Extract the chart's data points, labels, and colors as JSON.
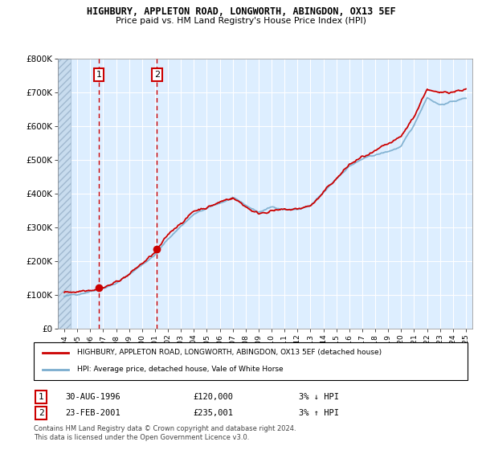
{
  "title": "HIGHBURY, APPLETON ROAD, LONGWORTH, ABINGDON, OX13 5EF",
  "subtitle": "Price paid vs. HM Land Registry's House Price Index (HPI)",
  "legend_label_red": "HIGHBURY, APPLETON ROAD, LONGWORTH, ABINGDON, OX13 5EF (detached house)",
  "legend_label_blue": "HPI: Average price, detached house, Vale of White Horse",
  "annotation1_label": "1",
  "annotation1_date": "30-AUG-1996",
  "annotation1_price": "£120,000",
  "annotation1_hpi": "3% ↓ HPI",
  "annotation2_label": "2",
  "annotation2_date": "23-FEB-2001",
  "annotation2_price": "£235,001",
  "annotation2_hpi": "3% ↑ HPI",
  "footer": "Contains HM Land Registry data © Crown copyright and database right 2024.\nThis data is licensed under the Open Government Licence v3.0.",
  "sale1_x": 1996.66,
  "sale1_y": 120000,
  "sale2_x": 2001.15,
  "sale2_y": 235001,
  "vline1_x": 1996.66,
  "vline2_x": 2001.15,
  "ylim": [
    0,
    800000
  ],
  "xlim_start": 1993.5,
  "xlim_end": 2025.5,
  "hatch_end": 1994.5,
  "color_red": "#cc0000",
  "color_blue": "#7aadce",
  "color_vline": "#cc0000",
  "background_plot": "#ddeeff",
  "background_fig": "#ffffff",
  "grid_color": "#ffffff",
  "xtick_years": [
    1994,
    1995,
    1996,
    1997,
    1998,
    1999,
    2000,
    2001,
    2002,
    2003,
    2004,
    2005,
    2006,
    2007,
    2008,
    2009,
    2010,
    2011,
    2012,
    2013,
    2014,
    2015,
    2016,
    2017,
    2018,
    2019,
    2020,
    2021,
    2022,
    2023,
    2024,
    2025
  ]
}
